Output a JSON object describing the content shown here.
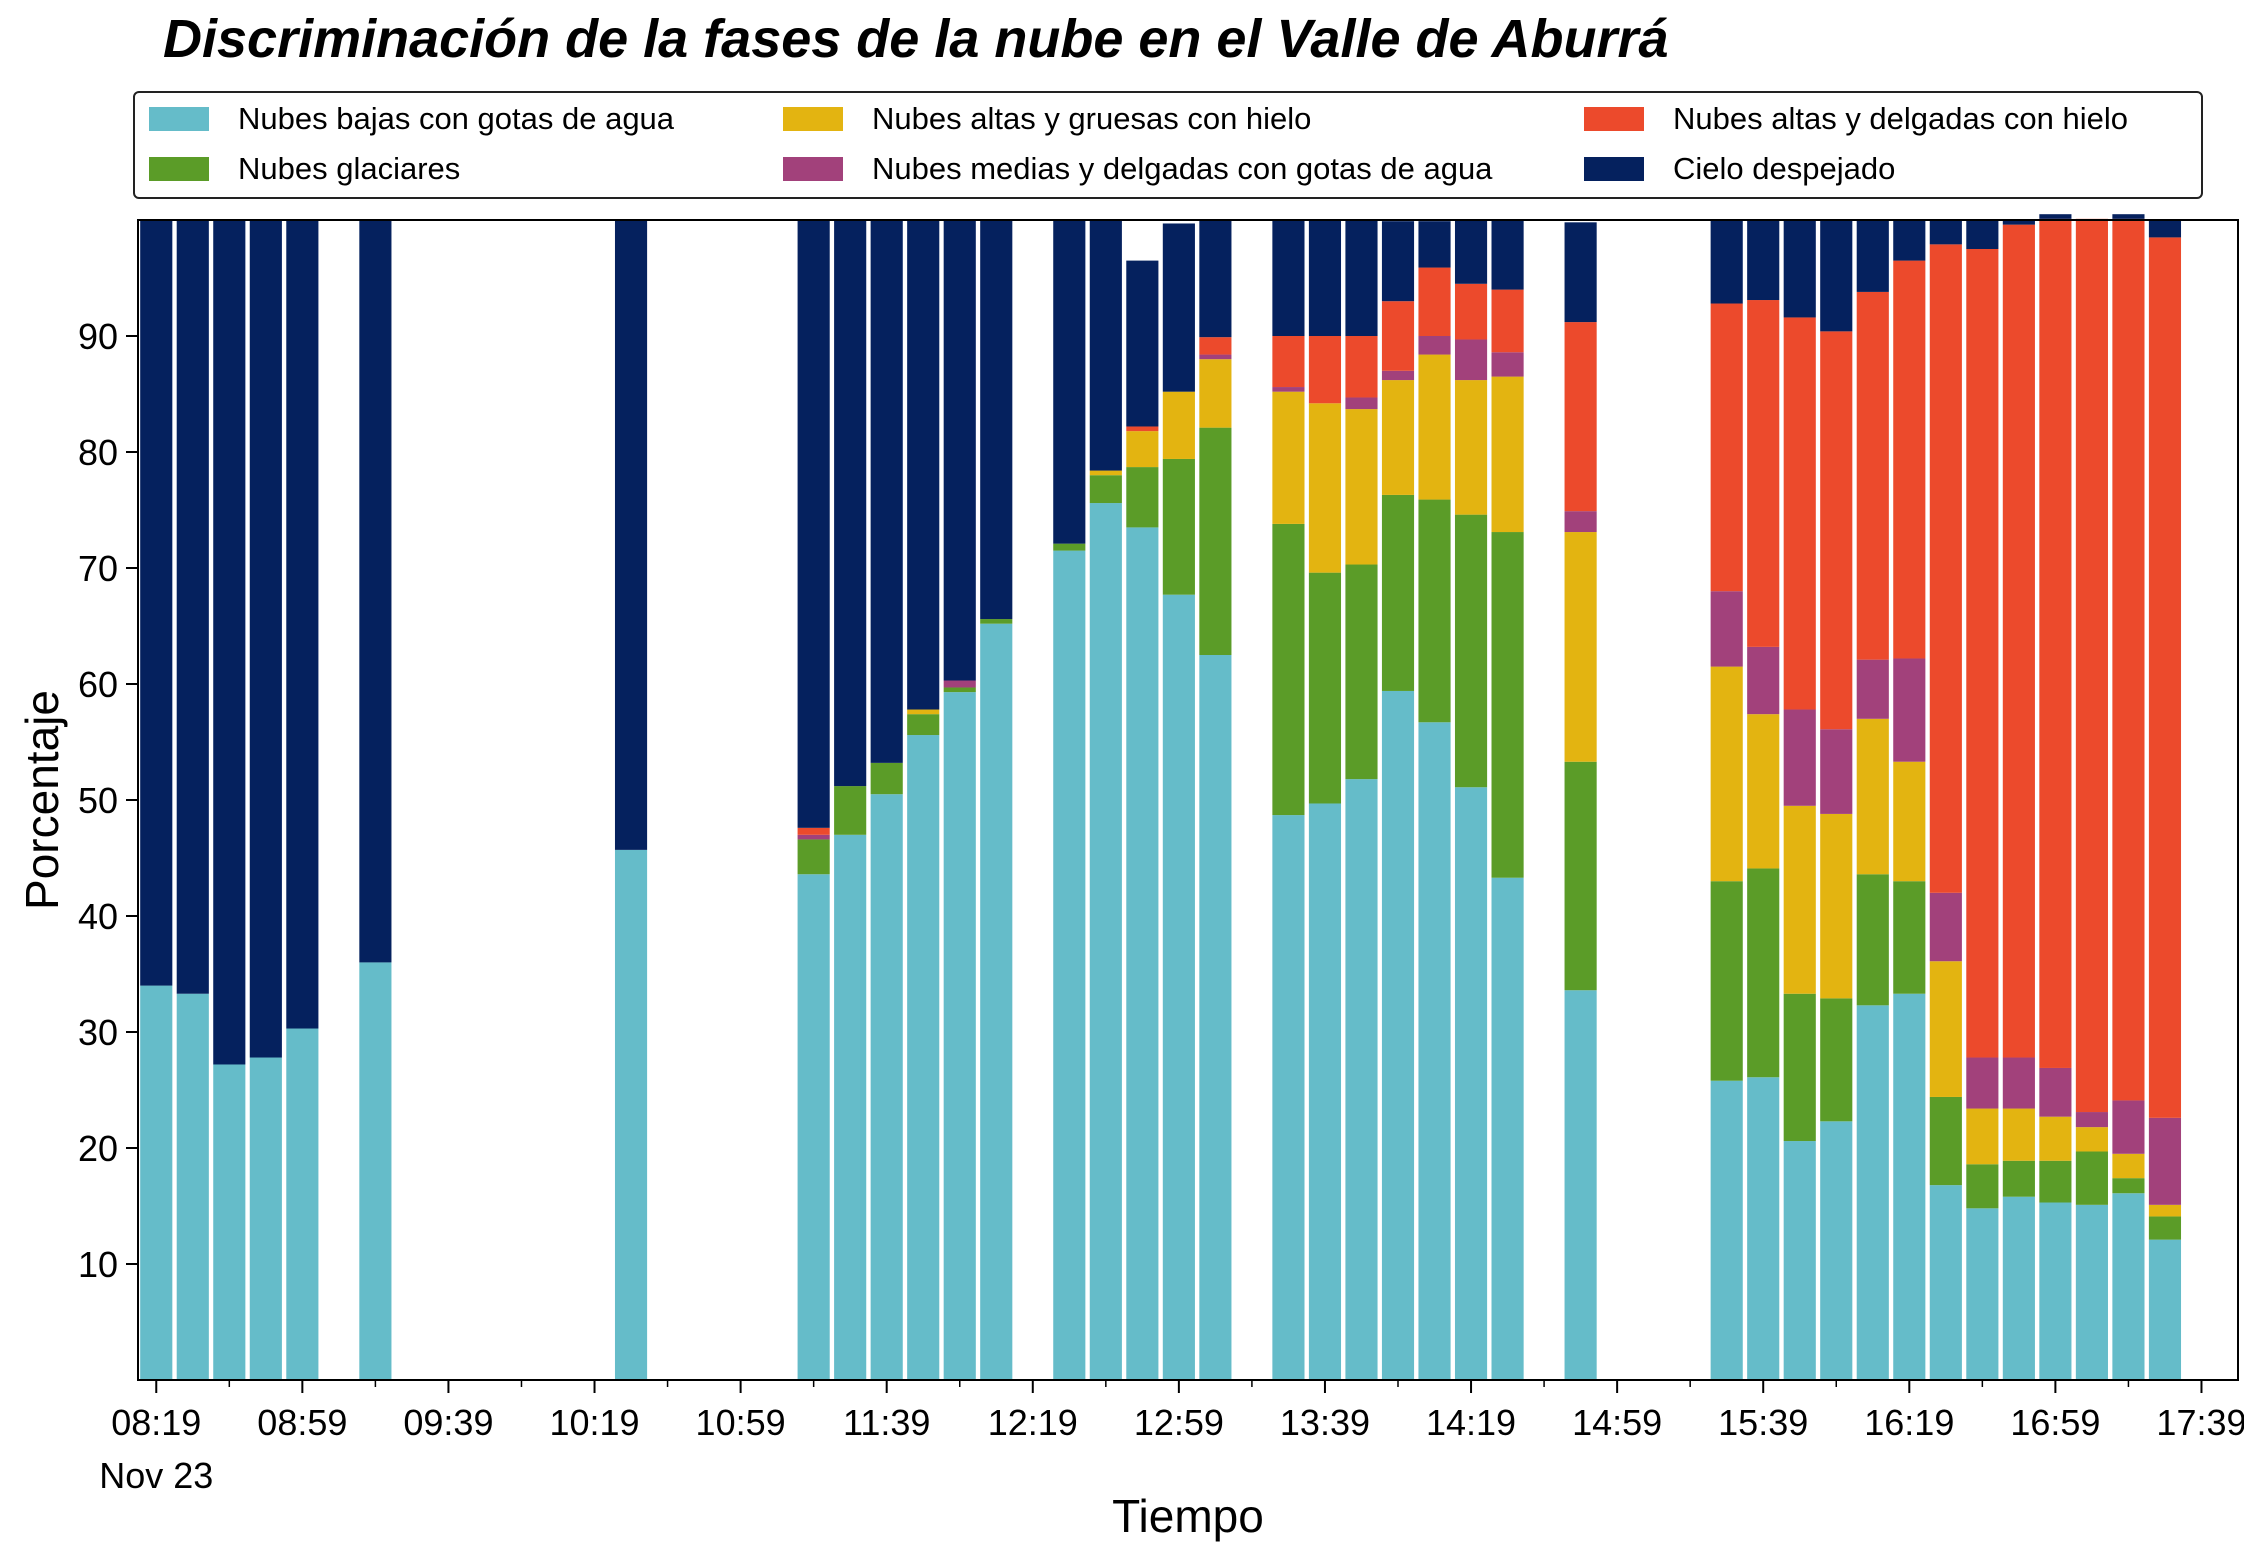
{
  "chart_data": {
    "type": "bar",
    "stacked": true,
    "title": "Discriminación de la fases de la nube en el Valle de Aburrá",
    "xlabel": "Tiempo",
    "ylabel": "Porcentaje",
    "xlim": [
      "08:14",
      "17:49"
    ],
    "ylim": [
      0,
      100
    ],
    "yticks": [
      10,
      20,
      30,
      40,
      50,
      60,
      70,
      80,
      90
    ],
    "xticks": [
      "08:19",
      "08:59",
      "09:39",
      "10:19",
      "10:59",
      "11:39",
      "12:19",
      "12:59",
      "13:39",
      "14:19",
      "14:59",
      "15:39",
      "16:19",
      "16:59",
      "17:39"
    ],
    "date_label": "Nov 23",
    "legend_position": "top",
    "grid": false,
    "times": [
      "08:19",
      "08:29",
      "08:39",
      "08:49",
      "08:59",
      "09:19",
      "10:29",
      "11:19",
      "11:29",
      "11:39",
      "11:49",
      "11:59",
      "12:09",
      "12:29",
      "12:39",
      "12:49",
      "12:59",
      "13:09",
      "13:29",
      "13:39",
      "13:49",
      "13:59",
      "14:09",
      "14:19",
      "14:29",
      "14:49",
      "15:29",
      "15:39",
      "15:49",
      "15:59",
      "16:09",
      "16:19",
      "16:29",
      "16:39",
      "16:49",
      "16:59",
      "17:09",
      "17:19",
      "17:29"
    ],
    "series": [
      {
        "name": "Nubes bajas con gotas de agua",
        "color": "#65bcc9",
        "values": [
          34,
          33.3,
          27.2,
          27.8,
          30.3,
          36,
          45.7,
          43.6,
          47,
          50.5,
          55.6,
          59.3,
          65.2,
          71.5,
          75.6,
          73.5,
          67.7,
          62.5,
          48.7,
          49.7,
          51.8,
          59.4,
          56.7,
          51.1,
          43.3,
          33.6,
          25.8,
          26.1,
          20.6,
          22.3,
          32.3,
          33.3,
          16.8,
          14.8,
          15.8,
          15.3,
          15.1,
          16.1,
          12.1
        ]
      },
      {
        "name": "Nubes glaciares",
        "color": "#5b9c28",
        "values": [
          0,
          0,
          0,
          0,
          0,
          0,
          0,
          3,
          4.2,
          2.7,
          1.8,
          0.4,
          0.4,
          0.6,
          2.4,
          5.2,
          11.7,
          19.6,
          25.1,
          19.9,
          18.5,
          16.9,
          19.2,
          23.5,
          29.8,
          19.7,
          17.2,
          18,
          12.7,
          10.6,
          11.3,
          9.7,
          7.6,
          3.8,
          3.1,
          3.6,
          4.6,
          1.3,
          2
        ]
      },
      {
        "name": "Nubes altas y gruesas con hielo",
        "color": "#e3b411",
        "values": [
          0,
          0,
          0,
          0,
          0,
          0,
          0,
          0,
          0,
          0,
          0.4,
          0,
          0,
          0,
          0.4,
          3.1,
          5.8,
          5.9,
          11.4,
          14.6,
          13.4,
          9.9,
          12.5,
          11.6,
          13.4,
          19.8,
          18.5,
          13.3,
          16.2,
          15.9,
          13.4,
          10.3,
          11.7,
          4.8,
          4.5,
          3.8,
          2.1,
          2.1,
          1
        ]
      },
      {
        "name": "Nubes medias y delgadas con gotas de agua",
        "color": "#a2417b",
        "values": [
          0,
          0,
          0,
          0,
          0,
          0,
          0,
          0.4,
          0,
          0,
          0,
          0.6,
          0,
          0,
          0,
          0,
          0,
          0.4,
          0.4,
          0,
          1,
          0.8,
          1.6,
          3.5,
          2.1,
          1.8,
          6.5,
          5.8,
          8.3,
          7.3,
          5.1,
          8.9,
          5.9,
          4.4,
          4.4,
          4.2,
          1.3,
          4.6,
          7.5
        ]
      },
      {
        "name": "Nubes altas y delgadas con hielo",
        "color": "#ec4a2c",
        "values": [
          0,
          0,
          0,
          0,
          0,
          0,
          0,
          0.6,
          0,
          0,
          0,
          0,
          0,
          0,
          0,
          0.4,
          0,
          1.5,
          4.4,
          5.8,
          5.3,
          6,
          5.9,
          4.8,
          5.4,
          16.3,
          24.8,
          29.9,
          33.8,
          34.3,
          31.7,
          34.3,
          55.9,
          69.7,
          71.8,
          73.2,
          77,
          76,
          75.9
        ]
      },
      {
        "name": "Cielo despejado",
        "color": "#05215e",
        "values": [
          66,
          66.7,
          72.8,
          72.2,
          69.7,
          64,
          54.3,
          52.4,
          48.8,
          46.8,
          42.2,
          39.7,
          34.4,
          27.9,
          21.6,
          14.3,
          14.5,
          10.1,
          10,
          10,
          10,
          6.9,
          4,
          5.5,
          6,
          8.6,
          7.2,
          6.9,
          8.4,
          9.6,
          6.2,
          3.5,
          2.1,
          2.5,
          0.4,
          0.4,
          0,
          0.4,
          1.5
        ]
      }
    ]
  }
}
